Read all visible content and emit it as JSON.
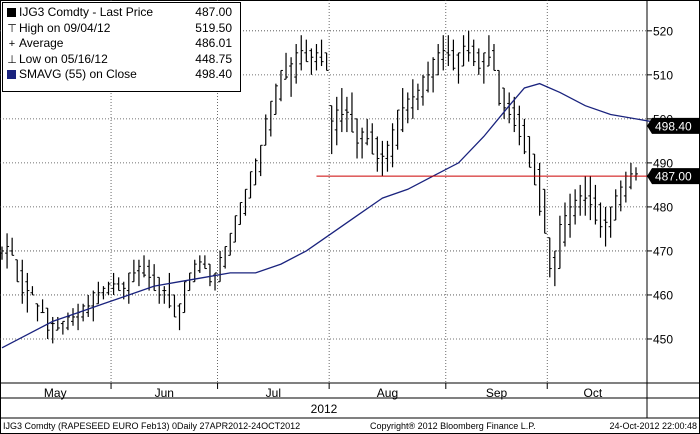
{
  "legend": {
    "title_ticker": "IJG3 Comdty",
    "title_field": "Last Price",
    "title_value": "487.00",
    "high_label": "High on 09/04/12",
    "high_value": "519.50",
    "avg_label": "Average",
    "avg_value": "486.01",
    "low_label": "Low on 05/16/12",
    "low_value": "448.75",
    "ma_label": "SMAVG (55) on Close",
    "ma_value": "498.40"
  },
  "footer": {
    "left": "IJG3 Comdty (RAPESEED EURO  Feb13) 0Daily 27APR2012-24OCT2012",
    "center": "Copyright® 2012 Bloomberg Finance L.P.",
    "right": "24-Oct-2012 22:00:48"
  },
  "colors": {
    "price_bars": "#000000",
    "moving_average": "#1a237e",
    "reference_line": "#cc0000",
    "grid": "#444444",
    "value_tag_bg": "#000000",
    "value_tag_text": "#ffffff"
  },
  "chart_data": {
    "type": "ohlc-bar",
    "title": "IJG3 Comdty - Last Price",
    "x_year_label": "2012",
    "x_month_labels": [
      "May",
      "Jun",
      "Jul",
      "Aug",
      "Sep",
      "Oct"
    ],
    "ylim": [
      440,
      527
    ],
    "yticks": [
      450,
      460,
      470,
      480,
      490,
      500,
      510,
      520
    ],
    "grid": true,
    "y_axis_side": "right",
    "reference_line": {
      "name": "Last Price",
      "value": 487.0,
      "from_date": "2012-08-02"
    },
    "value_tags": [
      {
        "label": "498.40",
        "value": 498.4
      },
      {
        "label": "487.00",
        "value": 487.0
      }
    ],
    "months": [
      {
        "label": "May",
        "days": 22
      },
      {
        "label": "Jun",
        "days": 21
      },
      {
        "label": "Jul",
        "days": 22
      },
      {
        "label": "Aug",
        "days": 23
      },
      {
        "label": "Sep",
        "days": 20
      },
      {
        "label": "Oct",
        "days": 18
      }
    ],
    "daily_price_path": [
      [
        468,
        471
      ],
      [
        466,
        474
      ],
      [
        469,
        473
      ],
      [
        463,
        468
      ],
      [
        458,
        468
      ],
      [
        456,
        465
      ],
      [
        460,
        462
      ],
      [
        454,
        458
      ],
      [
        456,
        459
      ],
      [
        450,
        457
      ],
      [
        449,
        455
      ],
      [
        452,
        455
      ],
      [
        451,
        454
      ],
      [
        452,
        456
      ],
      [
        453,
        457
      ],
      [
        452,
        458
      ],
      [
        454,
        458
      ],
      [
        455,
        460
      ],
      [
        454,
        461
      ],
      [
        458,
        463
      ],
      [
        459,
        462
      ],
      [
        460,
        463
      ],
      [
        460,
        465
      ],
      [
        461,
        464
      ],
      [
        459,
        463
      ],
      [
        458,
        465
      ],
      [
        463,
        468
      ],
      [
        462,
        468
      ],
      [
        464,
        469
      ],
      [
        461,
        468
      ],
      [
        461,
        467
      ],
      [
        458,
        464
      ],
      [
        458,
        462
      ],
      [
        457,
        465
      ],
      [
        455,
        460
      ],
      [
        452,
        458
      ],
      [
        456,
        463
      ],
      [
        461,
        465
      ],
      [
        463,
        468
      ],
      [
        465,
        469
      ],
      [
        466,
        469
      ],
      [
        462,
        467
      ],
      [
        461,
        465
      ],
      [
        463,
        470
      ],
      [
        466,
        471
      ],
      [
        469,
        474
      ],
      [
        472,
        478
      ],
      [
        476,
        481
      ],
      [
        478,
        484
      ],
      [
        482,
        488
      ],
      [
        485,
        491
      ],
      [
        487,
        494
      ],
      [
        494,
        501
      ],
      [
        496,
        504
      ],
      [
        501,
        508
      ],
      [
        504,
        511
      ],
      [
        509,
        515
      ],
      [
        505,
        514
      ],
      [
        508,
        517
      ],
      [
        511,
        519
      ],
      [
        513,
        518
      ],
      [
        510,
        516
      ],
      [
        511,
        517
      ],
      [
        512,
        518
      ],
      [
        511,
        515
      ],
      [
        492,
        503
      ],
      [
        494,
        505
      ],
      [
        497,
        507
      ],
      [
        497,
        505
      ],
      [
        497,
        506
      ],
      [
        491,
        500
      ],
      [
        491,
        498
      ],
      [
        494,
        500
      ],
      [
        492,
        499
      ],
      [
        488,
        496
      ],
      [
        487,
        495
      ],
      [
        488,
        495
      ],
      [
        489,
        499
      ],
      [
        493,
        502
      ],
      [
        497,
        507
      ],
      [
        499,
        506
      ],
      [
        500,
        509
      ],
      [
        502,
        508
      ],
      [
        503,
        510
      ],
      [
        506,
        513
      ],
      [
        506,
        514
      ],
      [
        510,
        517
      ],
      [
        511,
        519
      ],
      [
        512,
        519
      ],
      [
        511,
        518
      ],
      [
        508,
        515
      ],
      [
        512,
        519
      ],
      [
        513,
        520
      ],
      [
        512,
        518
      ],
      [
        510,
        516
      ],
      [
        508,
        515
      ],
      [
        512,
        519
      ],
      [
        511,
        517
      ],
      [
        503,
        511
      ],
      [
        500,
        507
      ],
      [
        499,
        506
      ],
      [
        497,
        505
      ],
      [
        494,
        503
      ],
      [
        492,
        500
      ],
      [
        489,
        496
      ],
      [
        485,
        492
      ],
      [
        478,
        490
      ],
      [
        474,
        484
      ],
      [
        464,
        473
      ],
      [
        462,
        470
      ],
      [
        466,
        478
      ],
      [
        471,
        481
      ],
      [
        473,
        483
      ],
      [
        476,
        484
      ],
      [
        478,
        485
      ],
      [
        478,
        487
      ],
      [
        477,
        487
      ],
      [
        476,
        485
      ],
      [
        473,
        481
      ],
      [
        471,
        480
      ],
      [
        473,
        480
      ],
      [
        477,
        484
      ],
      [
        479,
        486
      ],
      [
        481,
        488
      ],
      [
        484,
        490
      ],
      [
        486,
        489
      ]
    ],
    "moving_average_start_date": "2012-05-01",
    "moving_average": [
      [
        0,
        448
      ],
      [
        5,
        451
      ],
      [
        10,
        454
      ],
      [
        15,
        456
      ],
      [
        20,
        458
      ],
      [
        25,
        460
      ],
      [
        30,
        462
      ],
      [
        35,
        463
      ],
      [
        40,
        464
      ],
      [
        45,
        465
      ],
      [
        50,
        465
      ],
      [
        55,
        467
      ],
      [
        60,
        470
      ],
      [
        65,
        474
      ],
      [
        70,
        478
      ],
      [
        75,
        482
      ],
      [
        80,
        484
      ],
      [
        85,
        487
      ],
      [
        90,
        490
      ],
      [
        95,
        496
      ],
      [
        100,
        503
      ],
      [
        103,
        507
      ],
      [
        106,
        508
      ],
      [
        110,
        506
      ],
      [
        115,
        503
      ],
      [
        120,
        501
      ],
      [
        125,
        500
      ],
      [
        130,
        499
      ],
      [
        134,
        498.4
      ]
    ],
    "note": "daily_price_path pairs are approximate [low, high] ranges per trading day, read from the chart"
  }
}
